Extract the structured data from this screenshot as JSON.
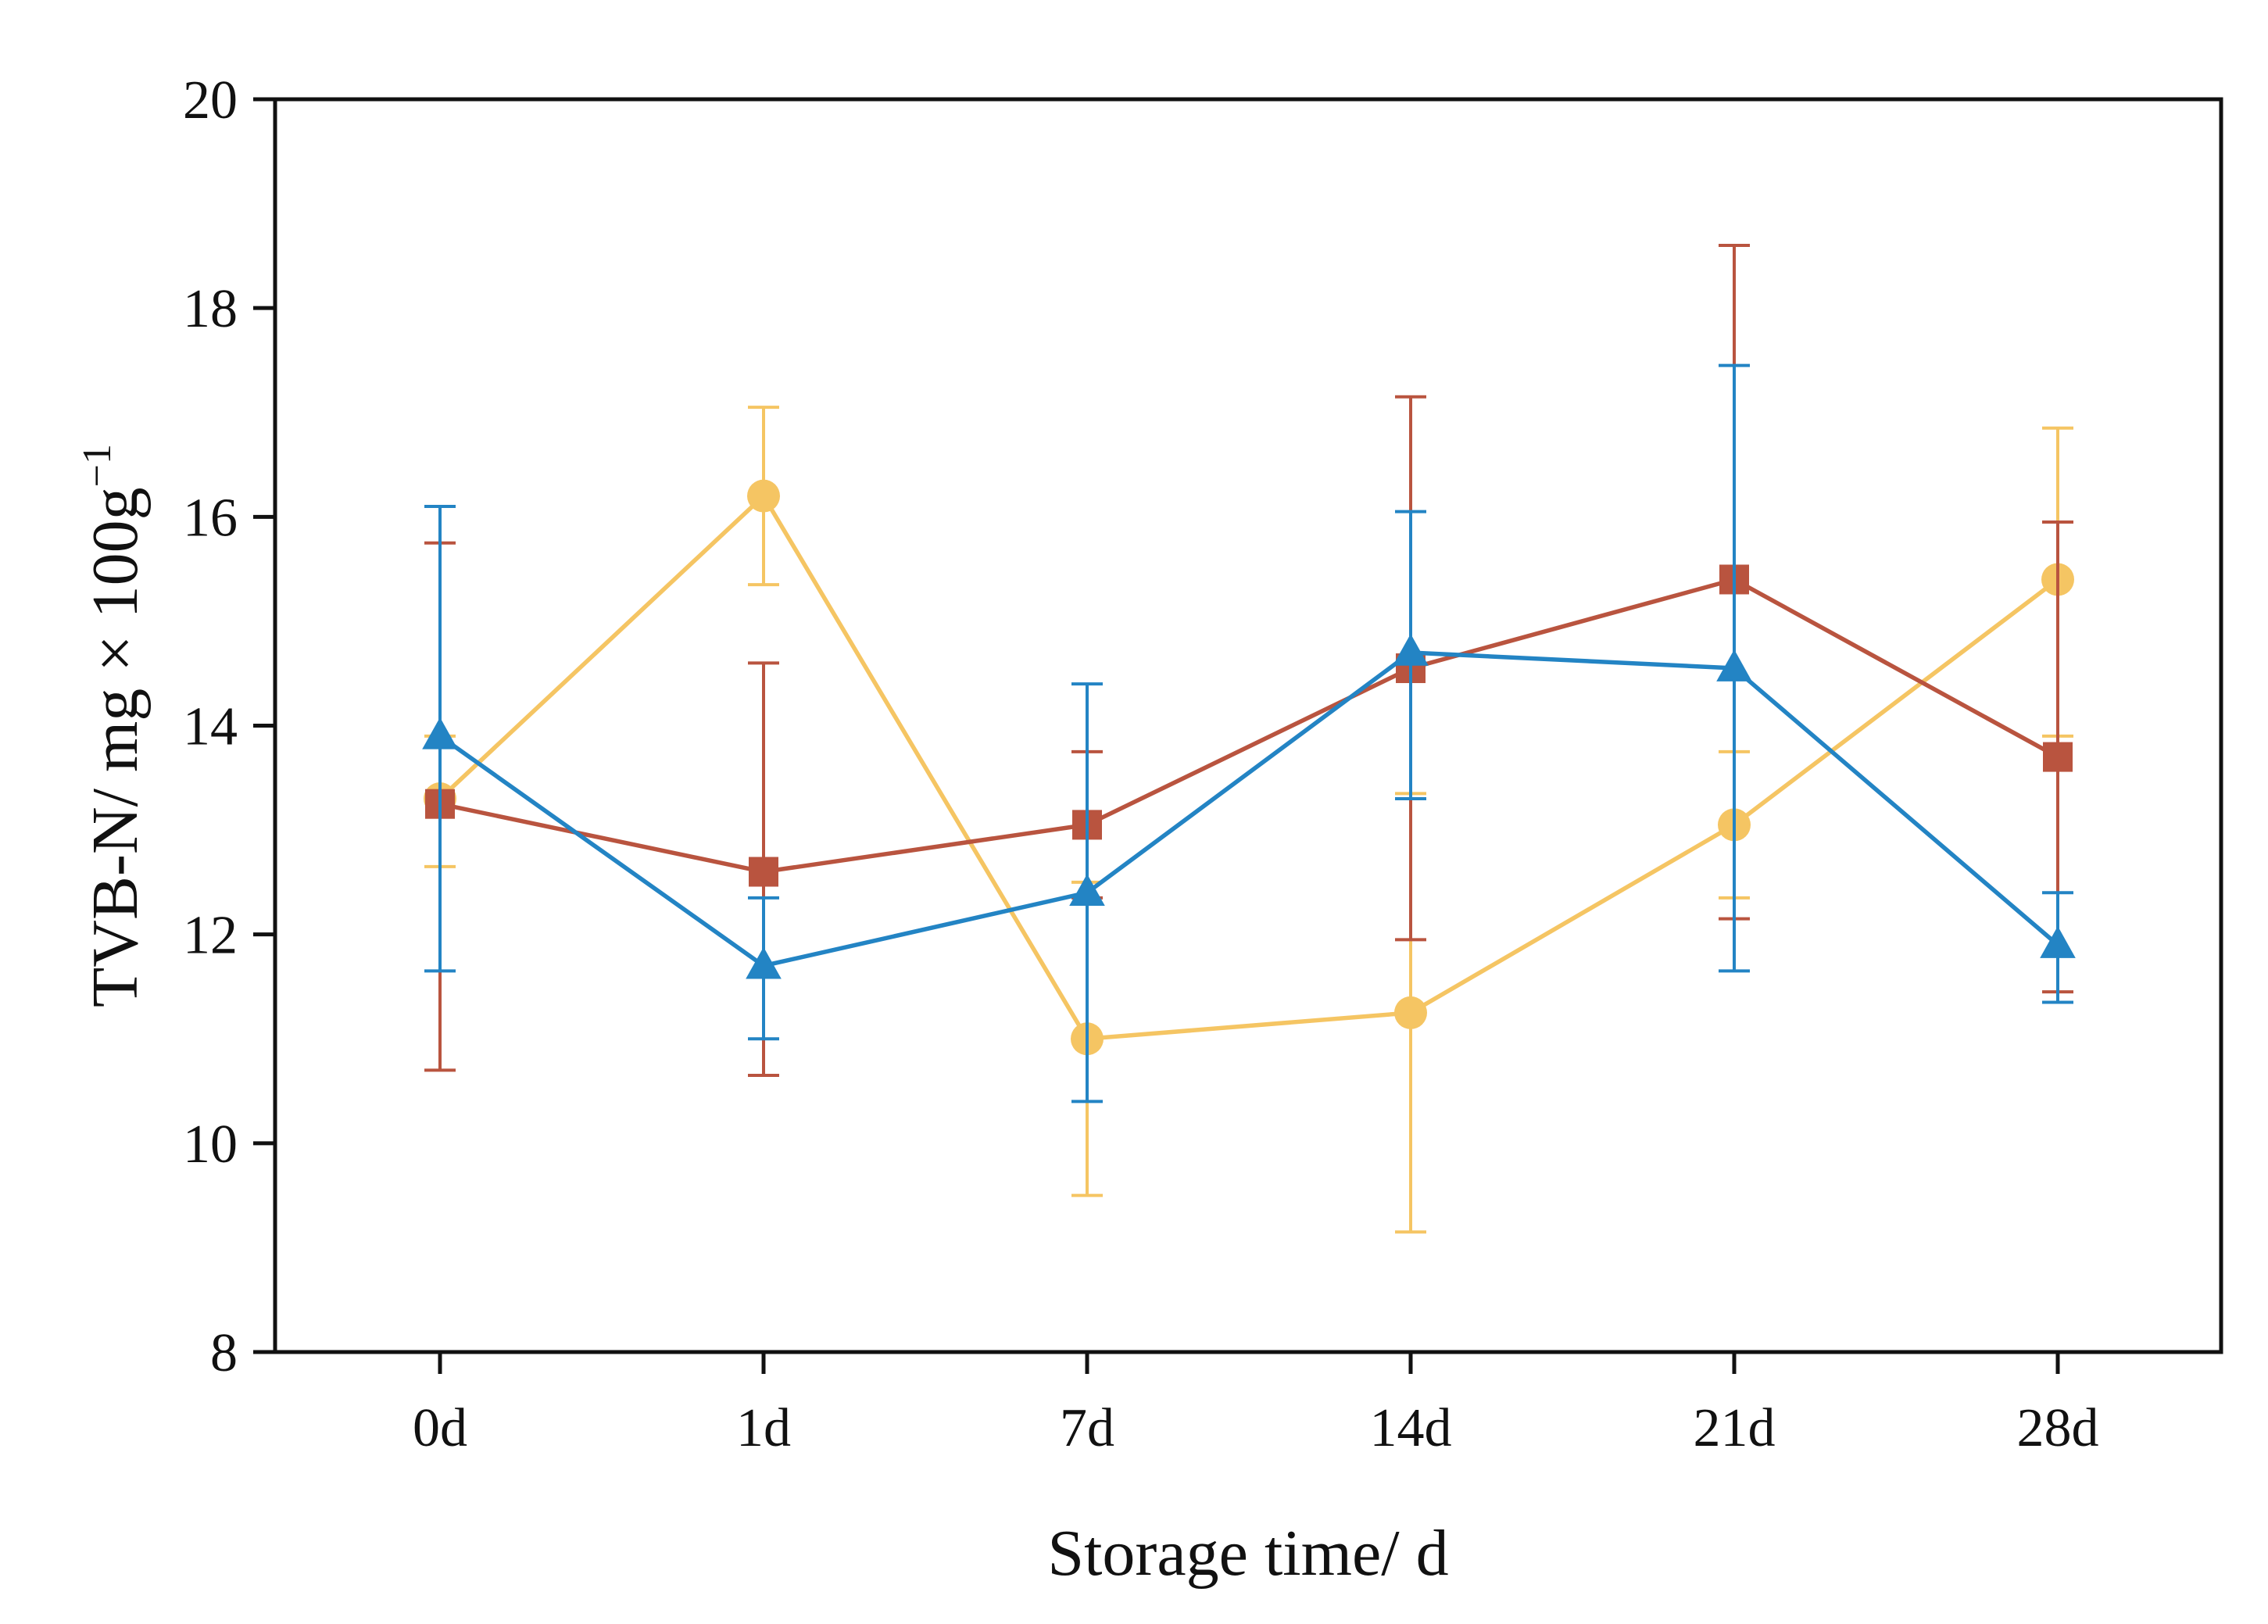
{
  "chart_data": {
    "type": "line",
    "title": "",
    "xlabel": "Storage time/ d",
    "ylabel": "TVB-N/ mg × 100g",
    "ylabel_superscript": "−1",
    "categories": [
      "0d",
      "1d",
      "7d",
      "14d",
      "21d",
      "28d"
    ],
    "ylim": [
      8,
      20
    ],
    "yticks": [
      8,
      10,
      12,
      14,
      16,
      18,
      20
    ],
    "grid": false,
    "legend": "none",
    "series": [
      {
        "name": "circle series",
        "color": "#f5c563",
        "marker": "circle",
        "values": [
          13.3,
          16.2,
          11.0,
          11.25,
          13.05,
          15.4
        ],
        "err_low": [
          12.65,
          15.35,
          9.5,
          9.15,
          12.35,
          13.9
        ],
        "err_high": [
          13.9,
          17.05,
          12.5,
          13.35,
          13.75,
          16.85
        ]
      },
      {
        "name": "square series",
        "color": "#b9543f",
        "marker": "square",
        "values": [
          13.25,
          12.6,
          13.05,
          14.55,
          15.4,
          13.7
        ],
        "err_low": [
          10.7,
          10.65,
          12.35,
          11.95,
          12.15,
          11.45
        ],
        "err_high": [
          15.75,
          14.6,
          13.75,
          17.15,
          18.6,
          15.95
        ]
      },
      {
        "name": "triangle series",
        "color": "#2384c4",
        "marker": "triangle",
        "values": [
          13.9,
          11.7,
          12.4,
          14.7,
          14.55,
          11.9
        ],
        "err_low": [
          11.65,
          11.0,
          10.4,
          13.3,
          11.65,
          11.35
        ],
        "err_high": [
          16.1,
          12.35,
          14.4,
          16.05,
          17.45,
          12.4
        ]
      }
    ]
  }
}
